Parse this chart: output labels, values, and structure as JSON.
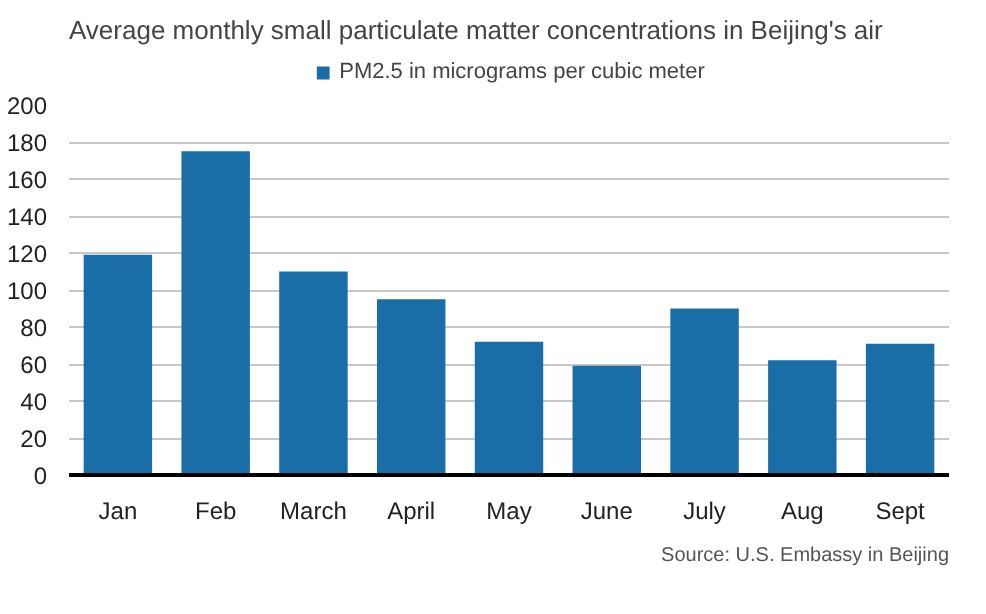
{
  "chart_data": {
    "type": "bar",
    "title": "Average monthly small particulate matter concentrations in Beijing's air",
    "categories": [
      "Jan",
      "Feb",
      "March",
      "April",
      "May",
      "June",
      "July",
      "Aug",
      "Sept"
    ],
    "series": [
      {
        "name": "PM2.5 in micrograms per cubic meter",
        "color": "#1a6ea8",
        "values": [
          119,
          175,
          110,
          95,
          72,
          59,
          90,
          62,
          71
        ]
      }
    ],
    "ylim": [
      0,
      200
    ],
    "yticks": [
      0,
      20,
      40,
      60,
      80,
      100,
      120,
      140,
      160,
      180,
      200
    ],
    "grid": "y",
    "legend": "top",
    "annotations": [
      "Source: U.S. Embassy in Beijing"
    ]
  }
}
